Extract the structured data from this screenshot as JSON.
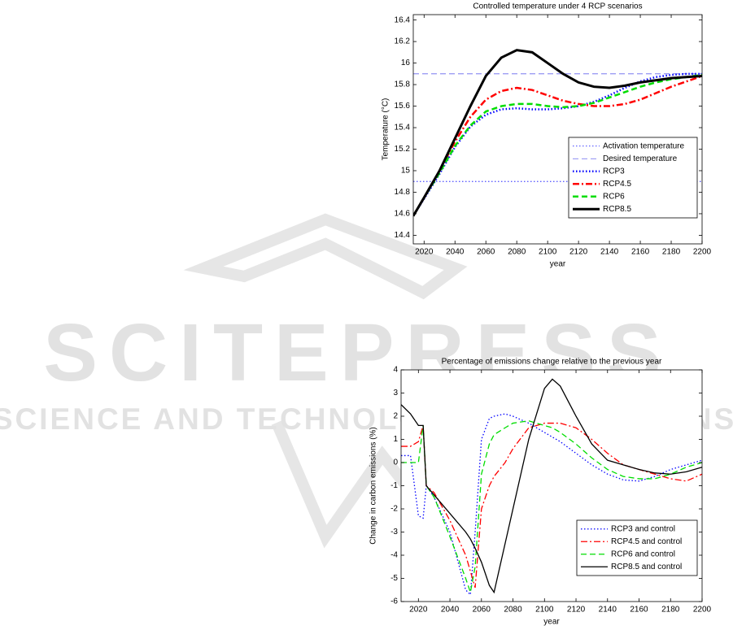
{
  "watermark": {
    "title": "SCITEPRESS",
    "subtitle": "SCIENCE AND TECHNOLOGY PUBLICATIONS"
  },
  "chart_data": [
    {
      "type": "line",
      "title": "Controlled temperature under 4 RCP scenarios",
      "x_label": "year",
      "y_label": "Temperature (°C)",
      "x": [
        2013,
        2020,
        2030,
        2040,
        2050,
        2060,
        2070,
        2080,
        2090,
        2100,
        2110,
        2120,
        2130,
        2140,
        2150,
        2160,
        2170,
        2180,
        2190,
        2200
      ],
      "xlim": [
        2013,
        2200
      ],
      "xticks": [
        2020,
        2040,
        2060,
        2080,
        2100,
        2120,
        2140,
        2160,
        2180,
        2200
      ],
      "ylim": [
        14.32,
        16.45
      ],
      "yticks": [
        14.4,
        14.6,
        14.8,
        15,
        15.2,
        15.4,
        15.6,
        15.8,
        16,
        16.2,
        16.4
      ],
      "legend": "lower right",
      "series": [
        {
          "name": "Activation temperature",
          "color": "#0000ff",
          "linestyle": "dotted",
          "width": 0.8,
          "values": [
            14.9,
            14.9,
            14.9,
            14.9,
            14.9,
            14.9,
            14.9,
            14.9,
            14.9,
            14.9,
            14.9,
            14.9,
            14.9,
            14.9,
            14.9,
            14.9,
            14.9,
            14.9,
            14.9,
            14.9
          ]
        },
        {
          "name": "Desired temperature",
          "color": "#6666ee",
          "linestyle": "dashed",
          "width": 0.8,
          "values": [
            15.9,
            15.9,
            15.9,
            15.9,
            15.9,
            15.9,
            15.9,
            15.9,
            15.9,
            15.9,
            15.9,
            15.9,
            15.9,
            15.9,
            15.9,
            15.9,
            15.9,
            15.9,
            15.9,
            15.9
          ]
        },
        {
          "name": "RCP3",
          "color": "#0000ff",
          "linestyle": "dotted",
          "width": 2.5,
          "values": [
            14.58,
            14.74,
            14.97,
            15.22,
            15.41,
            15.52,
            15.57,
            15.58,
            15.57,
            15.57,
            15.58,
            15.6,
            15.64,
            15.7,
            15.77,
            15.83,
            15.87,
            15.89,
            15.9,
            15.9
          ]
        },
        {
          "name": "RCP4.5",
          "color": "#ff0000",
          "linestyle": "dashdot",
          "width": 2.5,
          "values": [
            14.58,
            14.75,
            15.0,
            15.27,
            15.5,
            15.66,
            15.74,
            15.77,
            15.75,
            15.7,
            15.65,
            15.62,
            15.6,
            15.6,
            15.62,
            15.66,
            15.72,
            15.78,
            15.83,
            15.88
          ]
        },
        {
          "name": "RCP6",
          "color": "#00dd00",
          "linestyle": "dashed",
          "width": 2.5,
          "values": [
            14.58,
            14.75,
            14.98,
            15.23,
            15.42,
            15.55,
            15.6,
            15.62,
            15.62,
            15.6,
            15.59,
            15.6,
            15.63,
            15.68,
            15.73,
            15.78,
            15.82,
            15.85,
            15.87,
            15.89
          ]
        },
        {
          "name": "RCP8.5",
          "color": "#000000",
          "linestyle": "solid",
          "width": 3,
          "values": [
            14.58,
            14.75,
            15.0,
            15.3,
            15.6,
            15.88,
            16.05,
            16.12,
            16.1,
            16.0,
            15.9,
            15.82,
            15.78,
            15.77,
            15.79,
            15.82,
            15.84,
            15.86,
            15.87,
            15.88
          ]
        }
      ]
    },
    {
      "type": "line",
      "title": "Percentage of emissions change relative to the previous year",
      "x_label": "year",
      "y_label": "Change in carbon emissions (%)",
      "x": [
        2009,
        2015,
        2020,
        2023,
        2025,
        2030,
        2040,
        2050,
        2053,
        2056,
        2060,
        2065,
        2068,
        2075,
        2080,
        2090,
        2100,
        2105,
        2110,
        2120,
        2130,
        2140,
        2150,
        2160,
        2170,
        2180,
        2190,
        2200
      ],
      "xlim": [
        2009,
        2200
      ],
      "xticks": [
        2020,
        2040,
        2060,
        2080,
        2100,
        2120,
        2140,
        2160,
        2180,
        2200
      ],
      "ylim": [
        -6,
        4
      ],
      "yticks": [
        -6,
        -5,
        -4,
        -3,
        -2,
        -1,
        0,
        1,
        2,
        3,
        4
      ],
      "legend": "lower right",
      "series": [
        {
          "name": "RCP3 and control",
          "color": "#0000ff",
          "linestyle": "dotted",
          "width": 1.3,
          "values": [
            0.3,
            0.3,
            -2.3,
            -2.4,
            -1.0,
            -1.5,
            -3.0,
            -5.5,
            -5.7,
            -3.0,
            1.0,
            1.9,
            2.0,
            2.1,
            2.0,
            1.7,
            1.3,
            1.1,
            0.9,
            0.4,
            -0.1,
            -0.5,
            -0.75,
            -0.8,
            -0.6,
            -0.3,
            -0.1,
            0.1
          ]
        },
        {
          "name": "RCP4.5 and control",
          "color": "#ff0000",
          "linestyle": "dashdot",
          "width": 1.3,
          "values": [
            0.7,
            0.7,
            0.9,
            1.6,
            -1.0,
            -1.3,
            -2.5,
            -4.0,
            -4.7,
            -5.4,
            -2.0,
            -1.0,
            -0.6,
            0.0,
            0.6,
            1.5,
            1.7,
            1.7,
            1.7,
            1.5,
            1.0,
            0.4,
            -0.1,
            -0.3,
            -0.5,
            -0.7,
            -0.8,
            -0.5
          ]
        },
        {
          "name": "RCP6 and control",
          "color": "#00dd00",
          "linestyle": "dashed",
          "width": 1.3,
          "values": [
            0,
            0,
            0,
            1.6,
            -1.0,
            -1.5,
            -3.2,
            -5.0,
            -5.6,
            -4.5,
            -0.5,
            0.8,
            1.2,
            1.5,
            1.7,
            1.8,
            1.6,
            1.5,
            1.3,
            0.8,
            0.2,
            -0.3,
            -0.6,
            -0.7,
            -0.7,
            -0.5,
            -0.2,
            0.0
          ]
        },
        {
          "name": "RCP8.5 and control",
          "color": "#000000",
          "linestyle": "solid",
          "width": 1.3,
          "values": [
            2.5,
            2.1,
            1.6,
            1.6,
            -1.0,
            -1.4,
            -2.2,
            -3.0,
            -3.3,
            -3.7,
            -4.3,
            -5.3,
            -5.6,
            -3.5,
            -2.0,
            1.0,
            3.2,
            3.6,
            3.3,
            2.0,
            0.8,
            0.1,
            -0.1,
            -0.3,
            -0.45,
            -0.5,
            -0.4,
            -0.2
          ]
        }
      ]
    }
  ]
}
